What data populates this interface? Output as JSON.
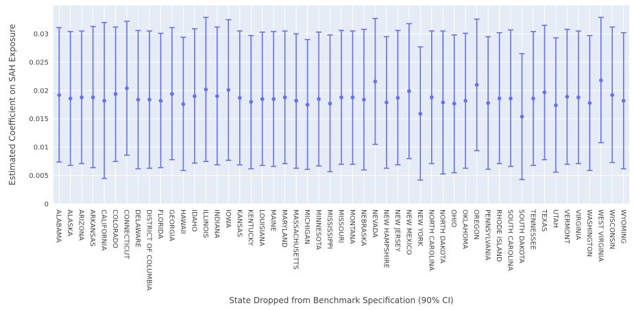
{
  "chart_data": {
    "type": "scatter",
    "error_bars": true,
    "xlabel": "State Dropped from Benchmark Specification (90% CI)",
    "ylabel": "Estimated Coefficient on SAH Exposure",
    "ylim": [
      0,
      0.035
    ],
    "yticks": [
      0,
      0.005,
      0.01,
      0.015,
      0.02,
      0.025,
      0.03
    ],
    "grid": true,
    "colors": {
      "marker": "#636efa",
      "plot_bg": "#e5ecf6",
      "grid": "#ffffff",
      "text": "#444444"
    },
    "categories": [
      "ALABAMA",
      "ALASKA",
      "ARIZONA",
      "ARKANSAS",
      "CALIFORNIA",
      "COLORADO",
      "CONNECTICUT",
      "DELAWARE",
      "DISTRICT OF COLUMBIA",
      "FLORIDA",
      "GEORGIA",
      "HAWAII",
      "IDAHO",
      "ILLINOIS",
      "INDIANA",
      "IOWA",
      "KANSAS",
      "KENTUCKY",
      "LOUISIANA",
      "MAINE",
      "MARYLAND",
      "MASSACHUSETTS",
      "MICHIGAN",
      "MINNESOTA",
      "MISSISSIPPI",
      "MISSOURI",
      "MONTANA",
      "NEBRASKA",
      "NEVADA",
      "NEW HAMPSHIRE",
      "NEW JERSEY",
      "NEW MEXICO",
      "NEW YORK",
      "NORTH CAROLINA",
      "NORTH DAKOTA",
      "OHIO",
      "OKLAHOMA",
      "OREGON",
      "PENNSYLVANIA",
      "RHODE ISLAND",
      "SOUTH CAROLINA",
      "SOUTH DAKOTA",
      "TENNESSEE",
      "TEXAS",
      "UTAH",
      "VERMONT",
      "VIRGINIA",
      "WASHINGTON",
      "WEST VIRGINIA",
      "WISCONSIN",
      "WYOMING"
    ],
    "values": [
      0.0192,
      0.0186,
      0.0188,
      0.0188,
      0.0182,
      0.0194,
      0.0204,
      0.0184,
      0.0184,
      0.0182,
      0.0194,
      0.0176,
      0.019,
      0.0202,
      0.019,
      0.0201,
      0.0187,
      0.018,
      0.0185,
      0.0185,
      0.0188,
      0.0182,
      0.0175,
      0.0185,
      0.0177,
      0.0188,
      0.0188,
      0.0184,
      0.0216,
      0.0179,
      0.0187,
      0.0199,
      0.0159,
      0.0188,
      0.0179,
      0.0177,
      0.0182,
      0.021,
      0.0178,
      0.0186,
      0.0186,
      0.0154,
      0.0186,
      0.0197,
      0.0174,
      0.0189,
      0.0188,
      0.0178,
      0.0218,
      0.0192,
      0.0182
    ],
    "lower": [
      0.0074,
      0.0068,
      0.0071,
      0.0064,
      0.0045,
      0.0075,
      0.0086,
      0.0062,
      0.0063,
      0.0064,
      0.0078,
      0.0059,
      0.0072,
      0.0075,
      0.0069,
      0.0077,
      0.0069,
      0.0062,
      0.0068,
      0.0066,
      0.0071,
      0.0063,
      0.0061,
      0.0067,
      0.0057,
      0.007,
      0.007,
      0.006,
      0.0105,
      0.0063,
      0.0069,
      0.008,
      0.0042,
      0.0071,
      0.0053,
      0.0055,
      0.0063,
      0.0094,
      0.0061,
      0.0071,
      0.0066,
      0.0043,
      0.0068,
      0.0078,
      0.0056,
      0.007,
      0.0071,
      0.0059,
      0.0108,
      0.0073,
      0.0062
    ],
    "upper": [
      0.0311,
      0.0304,
      0.0305,
      0.0313,
      0.032,
      0.0312,
      0.0322,
      0.0306,
      0.0305,
      0.0301,
      0.0311,
      0.0294,
      0.0309,
      0.0329,
      0.0312,
      0.0325,
      0.0305,
      0.0297,
      0.0303,
      0.0304,
      0.0305,
      0.03,
      0.029,
      0.0303,
      0.0298,
      0.0306,
      0.0305,
      0.0308,
      0.0327,
      0.0295,
      0.0306,
      0.0318,
      0.0277,
      0.0305,
      0.0305,
      0.0298,
      0.0301,
      0.0326,
      0.0295,
      0.0302,
      0.0307,
      0.0265,
      0.0304,
      0.0315,
      0.0293,
      0.0308,
      0.0305,
      0.0297,
      0.0329,
      0.0312,
      0.0302
    ]
  }
}
